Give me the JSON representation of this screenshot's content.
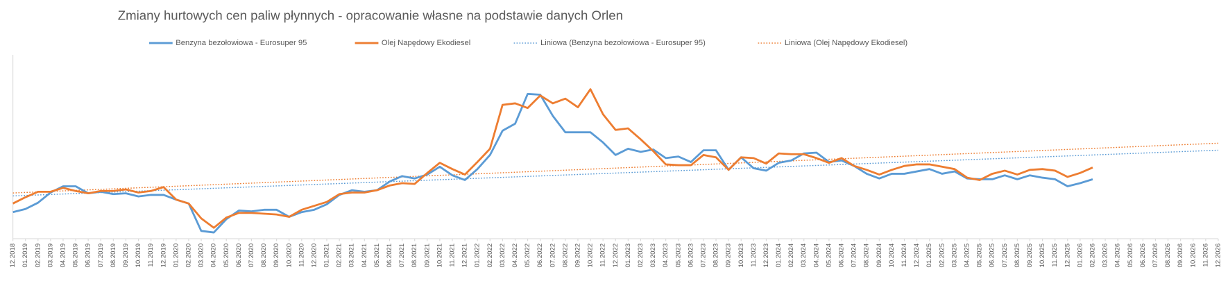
{
  "chart_data": {
    "type": "line",
    "title": "Zmiany hurtowych cen paliw płynnych - opracowanie własne na podstawie danych Orlen",
    "categories": [
      "12.2018",
      "01.2019",
      "02.2019",
      "03.2019",
      "04.2019",
      "05.2019",
      "06.2019",
      "07.2019",
      "08.2019",
      "09.2019",
      "10.2019",
      "11.2019",
      "12.2019",
      "01.2020",
      "02.2020",
      "03.2020",
      "04.2020",
      "05.2020",
      "06.2020",
      "07.2020",
      "08.2020",
      "09.2020",
      "10.2020",
      "11.2020",
      "12.2020",
      "01.2021",
      "02.2021",
      "03.2021",
      "04.2021",
      "05.2021",
      "06.2021",
      "07.2021",
      "08.2021",
      "09.2021",
      "10.2021",
      "11.2021",
      "12.2021",
      "01.2022",
      "02.2022",
      "03.2022",
      "04.2022",
      "05.2022",
      "06.2022",
      "07.2022",
      "08.2022",
      "09.2022",
      "10.2022",
      "11.2022",
      "12.2022",
      "01.2023",
      "02.2023",
      "03.2023",
      "04.2023",
      "05.2023",
      "06.2023",
      "07.2023",
      "08.2023",
      "09.2023",
      "10.2023",
      "11.2023",
      "12.2023",
      "01.2024",
      "02.2024",
      "03.2024",
      "04.2024",
      "05.2024",
      "06.2024",
      "07.2024",
      "08.2024",
      "09.2024",
      "10.2024",
      "11.2024",
      "12.2024",
      "01.2025",
      "02.2025",
      "03.2025",
      "04.2025",
      "05.2025",
      "06.2025",
      "07.2025",
      "08.2025",
      "09.2025",
      "10.2025",
      "11.2025",
      "12.2025",
      "01.2026",
      "02.2026",
      "03.2026",
      "04.2026",
      "05.2026",
      "06.2026",
      "07.2026",
      "08.2026",
      "09.2026",
      "10.2026",
      "11.2026",
      "12.2026"
    ],
    "series": [
      {
        "name": "Benzyna bezołowiowa - Eurosuper 95",
        "color": "#5b9bd5",
        "trendline": {
          "name": "Liniowa (Benzyna bezołowiowa - Eurosuper 95)",
          "color": "#5b9bd5"
        },
        "values": [
          34,
          38,
          46,
          59,
          67,
          67,
          58,
          60,
          57,
          58,
          54,
          56,
          56,
          50,
          45,
          10,
          8,
          25,
          36,
          35,
          37,
          37,
          28,
          34,
          37,
          44,
          56,
          62,
          60,
          62,
          73,
          80,
          77,
          82,
          92,
          81,
          75,
          89,
          107,
          138,
          147,
          185,
          184,
          157,
          136,
          136,
          136,
          123,
          107,
          115,
          111,
          114,
          103,
          105,
          98,
          113,
          113,
          88,
          104,
          90,
          87,
          97,
          100,
          109,
          110,
          98,
          100,
          93,
          83,
          77,
          83,
          83,
          86,
          89,
          83,
          86,
          77,
          76,
          76,
          81,
          76,
          81,
          78,
          76,
          67,
          71,
          76,
          null,
          null,
          null,
          null,
          null,
          null,
          null,
          null,
          null,
          null
        ]
      },
      {
        "name": "Olej Napędowy Ekodiesel",
        "color": "#ed7d31",
        "trendline": {
          "name": "Liniowa (Olej Napędowy Ekodiesel)",
          "color": "#ed7d31"
        },
        "values": [
          45,
          53,
          60,
          60,
          65,
          61,
          58,
          61,
          61,
          63,
          59,
          61,
          66,
          50,
          45,
          26,
          14,
          27,
          33,
          33,
          32,
          31,
          28,
          37,
          42,
          47,
          57,
          59,
          59,
          62,
          68,
          71,
          70,
          84,
          97,
          89,
          82,
          98,
          115,
          171,
          173,
          167,
          183,
          173,
          179,
          168,
          191,
          159,
          139,
          141,
          127,
          112,
          95,
          94,
          94,
          107,
          104,
          88,
          104,
          103,
          96,
          109,
          108,
          108,
          103,
          97,
          103,
          93,
          88,
          82,
          88,
          93,
          95,
          95,
          92,
          89,
          78,
          75,
          83,
          87,
          82,
          88,
          89,
          87,
          79,
          84,
          91,
          null,
          null,
          null,
          null,
          null,
          null,
          null,
          null,
          null,
          null
        ]
      }
    ],
    "ylim": [
      0,
      235
    ]
  }
}
